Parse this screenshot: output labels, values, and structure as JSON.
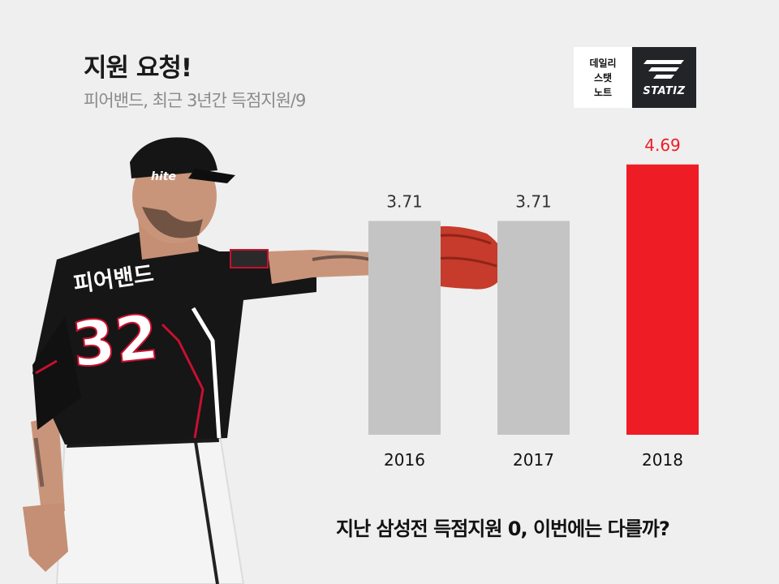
{
  "title": "지원 요청!",
  "subtitle": "피어밴드, 최근 3년간 득점지원/9",
  "logo": {
    "lines": [
      "데일리",
      "스탯",
      "노트"
    ],
    "brand": "STATIZ"
  },
  "player": {
    "jersey_name": "피어밴드",
    "number": "32",
    "cap_text": "hite"
  },
  "caption": "지난 삼성전 득점지원 0, 이번에는 다를까?",
  "chart_data": {
    "type": "bar",
    "title": "",
    "categories": [
      "2016",
      "2017",
      "2018"
    ],
    "values": [
      3.71,
      3.71,
      4.69
    ],
    "labels": [
      "3.71",
      "3.71",
      "4.69"
    ],
    "colors": [
      "#c4c4c4",
      "#c4c4c4",
      "#ee1c25"
    ],
    "label_colors": [
      "#333333",
      "#333333",
      "#ee1c25"
    ],
    "ylim": [
      0,
      5.7
    ],
    "grid": false
  }
}
